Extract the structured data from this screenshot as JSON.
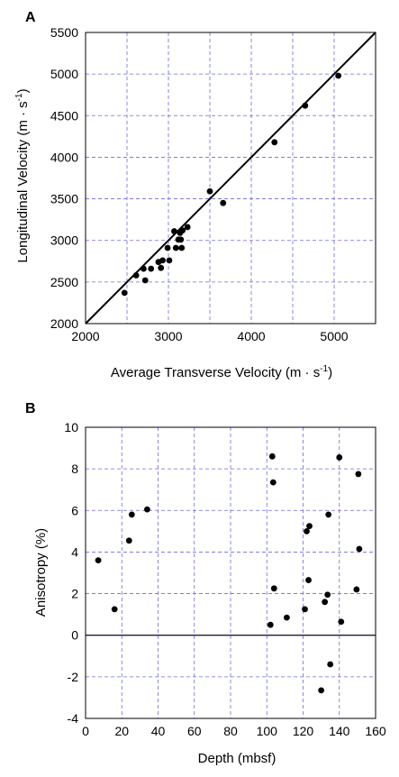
{
  "chart_data": [
    {
      "panel_label": "A",
      "type": "scatter",
      "xlabel": "Average Transverse Velocity (m · s",
      "xlabel_sup": "-1",
      "xlabel_end": ")",
      "ylabel": "Longitudinal Velocity (m · s",
      "ylabel_sup": "-1",
      "ylabel_end": ")",
      "xlim": [
        2000,
        5500
      ],
      "ylim": [
        2000,
        5500
      ],
      "xticks": [
        2000,
        3000,
        4000,
        5000
      ],
      "yticks": [
        2000,
        2500,
        3000,
        3500,
        4000,
        4500,
        5000,
        5500
      ],
      "grid_x": [
        2500,
        3000,
        3500,
        4000,
        4500,
        5000
      ],
      "grid_y": [
        2500,
        3000,
        3500,
        4000,
        4500,
        5000
      ],
      "grid": true,
      "reference_line": {
        "x": [
          2000,
          5500
        ],
        "y": [
          2000,
          5500
        ]
      },
      "points": [
        {
          "x": 2470,
          "y": 2370
        },
        {
          "x": 2610,
          "y": 2580
        },
        {
          "x": 2700,
          "y": 2660
        },
        {
          "x": 2720,
          "y": 2520
        },
        {
          "x": 2790,
          "y": 2660
        },
        {
          "x": 2880,
          "y": 2740
        },
        {
          "x": 2910,
          "y": 2670
        },
        {
          "x": 2930,
          "y": 2760
        },
        {
          "x": 2990,
          "y": 2910
        },
        {
          "x": 3010,
          "y": 2760
        },
        {
          "x": 3070,
          "y": 3110
        },
        {
          "x": 3090,
          "y": 2910
        },
        {
          "x": 3120,
          "y": 3010
        },
        {
          "x": 3140,
          "y": 3090
        },
        {
          "x": 3150,
          "y": 3010
        },
        {
          "x": 3160,
          "y": 2910
        },
        {
          "x": 3170,
          "y": 3120
        },
        {
          "x": 3230,
          "y": 3160
        },
        {
          "x": 3500,
          "y": 3590
        },
        {
          "x": 3660,
          "y": 3450
        },
        {
          "x": 4280,
          "y": 4180
        },
        {
          "x": 4650,
          "y": 4620
        },
        {
          "x": 5050,
          "y": 4980
        }
      ]
    },
    {
      "panel_label": "B",
      "type": "scatter",
      "xlabel": "Depth (mbsf)",
      "ylabel": "Anisotropy  (%)",
      "xlim": [
        0,
        160
      ],
      "ylim": [
        -4,
        10
      ],
      "xticks": [
        0,
        20,
        40,
        60,
        80,
        100,
        120,
        140,
        160
      ],
      "yticks": [
        -4,
        -2,
        0,
        2,
        4,
        6,
        8,
        10
      ],
      "grid_x": [
        20,
        40,
        60,
        80,
        100,
        120,
        140
      ],
      "grid_y": [
        -2,
        0,
        2,
        4,
        6,
        8
      ],
      "grid": true,
      "zero_line": 0,
      "points": [
        {
          "x": 7,
          "y": 3.6
        },
        {
          "x": 16,
          "y": 1.25
        },
        {
          "x": 24,
          "y": 4.55
        },
        {
          "x": 25.5,
          "y": 5.8
        },
        {
          "x": 34,
          "y": 6.05
        },
        {
          "x": 102,
          "y": 0.5
        },
        {
          "x": 103,
          "y": 8.6
        },
        {
          "x": 103.5,
          "y": 7.35
        },
        {
          "x": 104,
          "y": 2.25
        },
        {
          "x": 111,
          "y": 0.85
        },
        {
          "x": 121,
          "y": 1.25
        },
        {
          "x": 122,
          "y": 5.0
        },
        {
          "x": 123,
          "y": 2.65
        },
        {
          "x": 123.5,
          "y": 5.25
        },
        {
          "x": 130,
          "y": -2.65
        },
        {
          "x": 132,
          "y": 1.6
        },
        {
          "x": 133.5,
          "y": 1.95
        },
        {
          "x": 134,
          "y": 5.8
        },
        {
          "x": 135,
          "y": -1.4
        },
        {
          "x": 140,
          "y": 8.55
        },
        {
          "x": 141,
          "y": 0.65
        },
        {
          "x": 149.5,
          "y": 2.2
        },
        {
          "x": 150.5,
          "y": 7.75
        },
        {
          "x": 151,
          "y": 4.15
        }
      ]
    }
  ]
}
